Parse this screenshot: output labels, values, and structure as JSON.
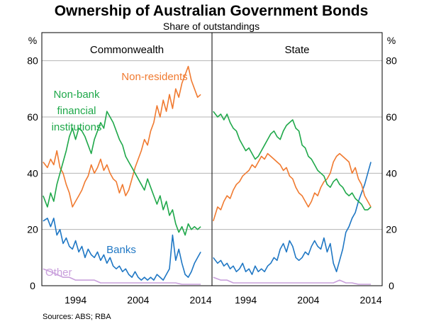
{
  "title": "Ownership of Australian Government Bonds",
  "subtitle": "Share of outstandings",
  "source": "Sources:   ABS; RBA",
  "colors": {
    "Non-residents": "#f07a30",
    "Non-bank financial institutions": "#1fa84a",
    "Banks": "#1f77c4",
    "Other": "#c9a0dc",
    "grid": "#b4b4b4"
  },
  "chart_data": {
    "type": "line",
    "y_unit_left": "%",
    "y_unit_right": "%",
    "ylim": [
      0,
      90
    ],
    "yticks": [
      0,
      20,
      40,
      60,
      80
    ],
    "xlim": [
      1988.6,
      2015.8
    ],
    "xticks": [
      1994,
      2004,
      2014
    ],
    "grid": true,
    "panels": [
      {
        "title": "Commonwealth",
        "series": [
          {
            "name": "Non-residents",
            "label": "Non-residents",
            "x": [
              1988.8,
              1989.5,
              1990,
              1990.5,
              1991,
              1991.5,
              1992,
              1992.5,
              1993,
              1993.5,
              1994,
              1994.5,
              1995,
              1995.5,
              1996,
              1996.5,
              1997,
              1997.5,
              1998,
              1998.5,
              1999,
              1999.5,
              2000,
              2000.5,
              2001,
              2001.5,
              2002,
              2002.5,
              2003,
              2003.5,
              2004,
              2004.5,
              2005,
              2005.5,
              2006,
              2006.5,
              2007,
              2007.5,
              2008,
              2008.5,
              2009,
              2009.5,
              2010,
              2010.5,
              2011,
              2011.5,
              2012,
              2012.5,
              2013,
              2013.5,
              2014
            ],
            "y": [
              44,
              42,
              45,
              43,
              48,
              42,
              40,
              36,
              33,
              28,
              30,
              32,
              34,
              37,
              39,
              43,
              40,
              42,
              45,
              41,
              43,
              40,
              38,
              37,
              33,
              36,
              32,
              34,
              38,
              42,
              45,
              48,
              52,
              50,
              55,
              58,
              64,
              60,
              66,
              62,
              68,
              63,
              70,
              67,
              72,
              75,
              78,
              73,
              70,
              67,
              68
            ]
          },
          {
            "name": "Non-bank financial institutions",
            "label": [
              "Non-bank",
              "financial",
              "institutions"
            ],
            "x": [
              1988.8,
              1989.5,
              1990,
              1990.5,
              1991,
              1991.5,
              1992,
              1992.5,
              1993,
              1993.5,
              1994,
              1994.5,
              1995,
              1995.5,
              1996,
              1996.5,
              1997,
              1997.5,
              1998,
              1998.5,
              1999,
              1999.5,
              2000,
              2000.5,
              2001,
              2001.5,
              2002,
              2002.5,
              2003,
              2003.5,
              2004,
              2004.5,
              2005,
              2005.5,
              2006,
              2006.5,
              2007,
              2007.5,
              2008,
              2008.5,
              2009,
              2009.5,
              2010,
              2010.5,
              2011,
              2011.5,
              2012,
              2012.5,
              2013,
              2013.5,
              2014
            ],
            "y": [
              32,
              28,
              33,
              30,
              36,
              40,
              44,
              48,
              53,
              56,
              52,
              56,
              55,
              53,
              50,
              47,
              52,
              55,
              58,
              56,
              62,
              60,
              58,
              55,
              52,
              50,
              46,
              44,
              42,
              40,
              38,
              36,
              34,
              38,
              35,
              32,
              29,
              32,
              27,
              30,
              25,
              27,
              22,
              19,
              21,
              18,
              22,
              20,
              21,
              20,
              21
            ]
          },
          {
            "name": "Banks",
            "label": "Banks",
            "x": [
              1988.8,
              1989.5,
              1990,
              1990.5,
              1991,
              1991.5,
              1992,
              1992.5,
              1993,
              1993.5,
              1994,
              1994.5,
              1995,
              1995.5,
              1996,
              1996.5,
              1997,
              1997.5,
              1998,
              1998.5,
              1999,
              1999.5,
              2000,
              2000.5,
              2001,
              2001.5,
              2002,
              2002.5,
              2003,
              2003.5,
              2004,
              2004.5,
              2005,
              2005.5,
              2006,
              2006.5,
              2007,
              2007.5,
              2008,
              2008.5,
              2009,
              2009.5,
              2010,
              2010.5,
              2011,
              2011.5,
              2012,
              2012.5,
              2013,
              2013.5,
              2014
            ],
            "y": [
              23,
              24,
              21,
              24,
              18,
              20,
              15,
              17,
              14,
              13,
              16,
              12,
              14,
              10,
              13,
              11,
              10,
              12,
              9,
              11,
              8,
              10,
              7,
              6,
              7,
              5,
              6,
              4,
              3,
              5,
              3,
              2,
              3,
              2,
              3,
              2,
              4,
              3,
              2,
              4,
              6,
              18,
              9,
              13,
              8,
              4,
              3,
              5,
              8,
              10,
              12
            ]
          },
          {
            "name": "Other",
            "label": "Other",
            "x": [
              1988.8,
              1990,
              1991,
              1992,
              1993,
              1994,
              1995,
              1996,
              1997,
              1998,
              1999,
              2000,
              2001,
              2002,
              2003,
              2004,
              2005,
              2006,
              2007,
              2008,
              2009,
              2010,
              2011,
              2012,
              2013,
              2014
            ],
            "y": [
              6,
              5,
              4,
              3,
              3,
              2,
              2,
              2,
              2,
              1,
              1,
              1,
              1,
              1,
              1,
              1,
              1,
              1,
              1,
              1,
              1,
              1,
              0.5,
              0.5,
              0.5,
              0.5
            ]
          }
        ]
      },
      {
        "title": "State",
        "series": [
          {
            "name": "Non-residents",
            "x": [
              1988.8,
              1989.5,
              1990,
              1990.5,
              1991,
              1991.5,
              1992,
              1992.5,
              1993,
              1993.5,
              1994,
              1994.5,
              1995,
              1995.5,
              1996,
              1996.5,
              1997,
              1997.5,
              1998,
              1998.5,
              1999,
              1999.5,
              2000,
              2000.5,
              2001,
              2001.5,
              2002,
              2002.5,
              2003,
              2003.5,
              2004,
              2004.5,
              2005,
              2005.5,
              2006,
              2006.5,
              2007,
              2007.5,
              2008,
              2008.5,
              2009,
              2009.5,
              2010,
              2010.5,
              2011,
              2011.5,
              2012,
              2012.5,
              2013,
              2013.5,
              2014
            ],
            "y": [
              23,
              28,
              27,
              30,
              32,
              31,
              34,
              36,
              37,
              39,
              40,
              41,
              43,
              42,
              44,
              46,
              45,
              47,
              46,
              45,
              44,
              43,
              41,
              42,
              39,
              38,
              35,
              33,
              32,
              30,
              28,
              30,
              33,
              32,
              35,
              37,
              38,
              40,
              44,
              46,
              47,
              46,
              45,
              44,
              40,
              42,
              38,
              36,
              32,
              30,
              28
            ]
          },
          {
            "name": "Non-bank financial institutions",
            "x": [
              1988.8,
              1989.5,
              1990,
              1990.5,
              1991,
              1991.5,
              1992,
              1992.5,
              1993,
              1993.5,
              1994,
              1994.5,
              1995,
              1995.5,
              1996,
              1996.5,
              1997,
              1997.5,
              1998,
              1998.5,
              1999,
              1999.5,
              2000,
              2000.5,
              2001,
              2001.5,
              2002,
              2002.5,
              2003,
              2003.5,
              2004,
              2004.5,
              2005,
              2005.5,
              2006,
              2006.5,
              2007,
              2007.5,
              2008,
              2008.5,
              2009,
              2009.5,
              2010,
              2010.5,
              2011,
              2011.5,
              2012,
              2012.5,
              2013,
              2013.5,
              2014
            ],
            "y": [
              62,
              60,
              61,
              59,
              61,
              58,
              56,
              55,
              52,
              50,
              48,
              49,
              47,
              45,
              46,
              48,
              50,
              52,
              54,
              55,
              53,
              52,
              55,
              57,
              58,
              59,
              56,
              55,
              50,
              49,
              46,
              45,
              43,
              41,
              40,
              39,
              36,
              35,
              37,
              38,
              36,
              35,
              33,
              32,
              33,
              31,
              30,
              29,
              27,
              27,
              28
            ]
          },
          {
            "name": "Banks",
            "x": [
              1988.8,
              1989.5,
              1990,
              1990.5,
              1991,
              1991.5,
              1992,
              1992.5,
              1993,
              1993.5,
              1994,
              1994.5,
              1995,
              1995.5,
              1996,
              1996.5,
              1997,
              1997.5,
              1998,
              1998.5,
              1999,
              1999.5,
              2000,
              2000.5,
              2001,
              2001.5,
              2002,
              2002.5,
              2003,
              2003.5,
              2004,
              2004.5,
              2005,
              2005.5,
              2006,
              2006.5,
              2007,
              2007.5,
              2008,
              2008.5,
              2009,
              2009.5,
              2010,
              2010.5,
              2011,
              2011.5,
              2012,
              2012.5,
              2013,
              2013.5,
              2014
            ],
            "y": [
              10,
              8,
              9,
              7,
              8,
              6,
              7,
              5,
              6,
              8,
              5,
              6,
              4,
              7,
              5,
              6,
              5,
              7,
              8,
              10,
              9,
              13,
              15,
              12,
              16,
              14,
              10,
              9,
              10,
              12,
              11,
              14,
              16,
              14,
              13,
              17,
              12,
              15,
              8,
              5,
              9,
              13,
              19,
              21,
              24,
              26,
              30,
              33,
              36,
              40,
              44
            ]
          },
          {
            "name": "Other",
            "x": [
              1988.8,
              1990,
              1991,
              1992,
              1993,
              1994,
              1995,
              1996,
              1997,
              1998,
              1999,
              2000,
              2001,
              2002,
              2003,
              2004,
              2005,
              2006,
              2007,
              2008,
              2009,
              2010,
              2011,
              2012,
              2013,
              2014
            ],
            "y": [
              3,
              2,
              2,
              1,
              1,
              1,
              1,
              1,
              1,
              1,
              1,
              1,
              1,
              1,
              1,
              1,
              1,
              1,
              1,
              1,
              2,
              1,
              1,
              0.5,
              0.5,
              0.5
            ]
          }
        ]
      }
    ]
  }
}
